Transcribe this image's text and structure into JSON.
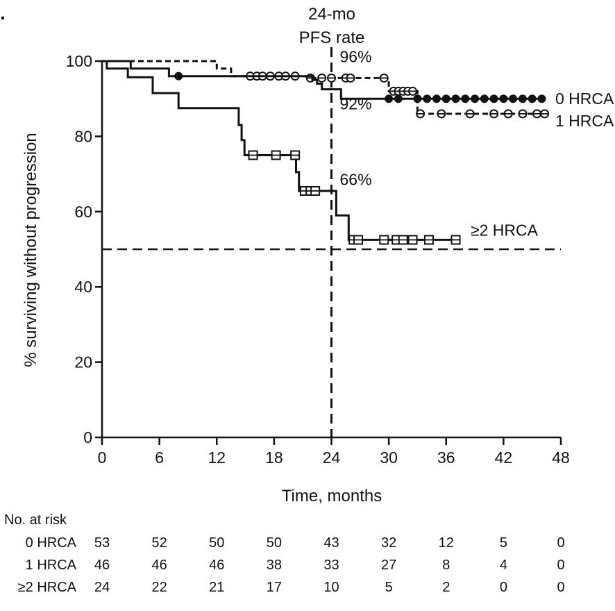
{
  "chart_data": {
    "type": "line",
    "subtype": "kaplan-meier",
    "title": "24-mo PFS rate",
    "title_lines": [
      "24-mo",
      "PFS rate"
    ],
    "panel_marker": ".",
    "xlabel": "Time, months",
    "ylabel": "% surviving without progression",
    "xlim": [
      0,
      48
    ],
    "ylim": [
      0,
      100
    ],
    "xticks": [
      0,
      6,
      12,
      18,
      24,
      30,
      36,
      42,
      48
    ],
    "yticks": [
      0,
      20,
      40,
      60,
      80,
      100
    ],
    "reference_lines": {
      "vertical_x": 24,
      "horizontal_y": 50
    },
    "annotations": [
      {
        "text": "96%",
        "x": 24,
        "y": 96
      },
      {
        "text": "92%",
        "x": 24,
        "y": 92
      },
      {
        "text": "66%",
        "x": 24,
        "y": 66
      }
    ],
    "series": [
      {
        "name": "0 HRCA",
        "label": "0 HRCA",
        "style": "solid",
        "marker": "filled-circle",
        "steps": [
          [
            0,
            100
          ],
          [
            3,
            100
          ],
          [
            3,
            98
          ],
          [
            7,
            98
          ],
          [
            7,
            96
          ],
          [
            22,
            96
          ],
          [
            22,
            95
          ],
          [
            22.5,
            95
          ],
          [
            22.5,
            94
          ],
          [
            23,
            94
          ],
          [
            23,
            92.5
          ],
          [
            25,
            92.5
          ],
          [
            25,
            90
          ],
          [
            46,
            90
          ]
        ],
        "censors": [
          8,
          33,
          34,
          35,
          36,
          37,
          38,
          39,
          40,
          41,
          42,
          43,
          44,
          45,
          46,
          30,
          31
        ]
      },
      {
        "name": "1 HRCA",
        "label": "1 HRCA",
        "style": "dashed",
        "marker": "open-circle-cross",
        "steps": [
          [
            0,
            100
          ],
          [
            12,
            100
          ],
          [
            12,
            98
          ],
          [
            13.5,
            98
          ],
          [
            13.5,
            96
          ],
          [
            21.5,
            96
          ],
          [
            21.5,
            95.5
          ],
          [
            30,
            95.5
          ],
          [
            30,
            92
          ],
          [
            33,
            92
          ],
          [
            33,
            86
          ],
          [
            46.5,
            86
          ]
        ],
        "censors": [
          15.5,
          16.2,
          16.8,
          17.6,
          18.5,
          19.2,
          20.2,
          21.8,
          23,
          24,
          25.5,
          26,
          29.5,
          30.5,
          31,
          31.5,
          32,
          32.5,
          33.3,
          35.5,
          38.5,
          41,
          42.5,
          44,
          45.5,
          46.3
        ]
      },
      {
        "name": "≥2 HRCA",
        "label": "≥2 HRCA",
        "style": "solid",
        "marker": "open-square-cross",
        "steps": [
          [
            0,
            100
          ],
          [
            0.5,
            100
          ],
          [
            0.5,
            98
          ],
          [
            2.7,
            98
          ],
          [
            2.7,
            95.7
          ],
          [
            5.3,
            95.7
          ],
          [
            5.3,
            91.5
          ],
          [
            8,
            91.5
          ],
          [
            8,
            87.5
          ],
          [
            14.3,
            87.5
          ],
          [
            14.3,
            83
          ],
          [
            14.6,
            83
          ],
          [
            14.6,
            79
          ],
          [
            14.9,
            79
          ],
          [
            14.9,
            75
          ],
          [
            20.3,
            75
          ],
          [
            20.3,
            70.5
          ],
          [
            20.6,
            70.5
          ],
          [
            20.6,
            65.5
          ],
          [
            24.5,
            65.5
          ],
          [
            24.5,
            59
          ],
          [
            25.8,
            59
          ],
          [
            25.8,
            52.5
          ],
          [
            37,
            52.5
          ]
        ],
        "censors": [
          15.8,
          18.2,
          20.2,
          21.2,
          21.8,
          22.3,
          26.3,
          26.8,
          29.5,
          30.8,
          31.5,
          32.5,
          34.2,
          37
        ]
      }
    ],
    "at_risk": {
      "label": "No. at risk",
      "times": [
        0,
        6,
        12,
        18,
        24,
        30,
        36,
        42,
        48
      ],
      "rows": [
        {
          "name": "0 HRCA",
          "values": [
            53,
            52,
            50,
            50,
            43,
            32,
            12,
            5,
            0
          ]
        },
        {
          "name": "1 HRCA",
          "values": [
            46,
            46,
            46,
            38,
            33,
            27,
            8,
            4,
            0
          ]
        },
        {
          "name": "≥2 HRCA",
          "values": [
            24,
            22,
            21,
            17,
            10,
            5,
            2,
            0,
            0
          ]
        }
      ]
    }
  }
}
